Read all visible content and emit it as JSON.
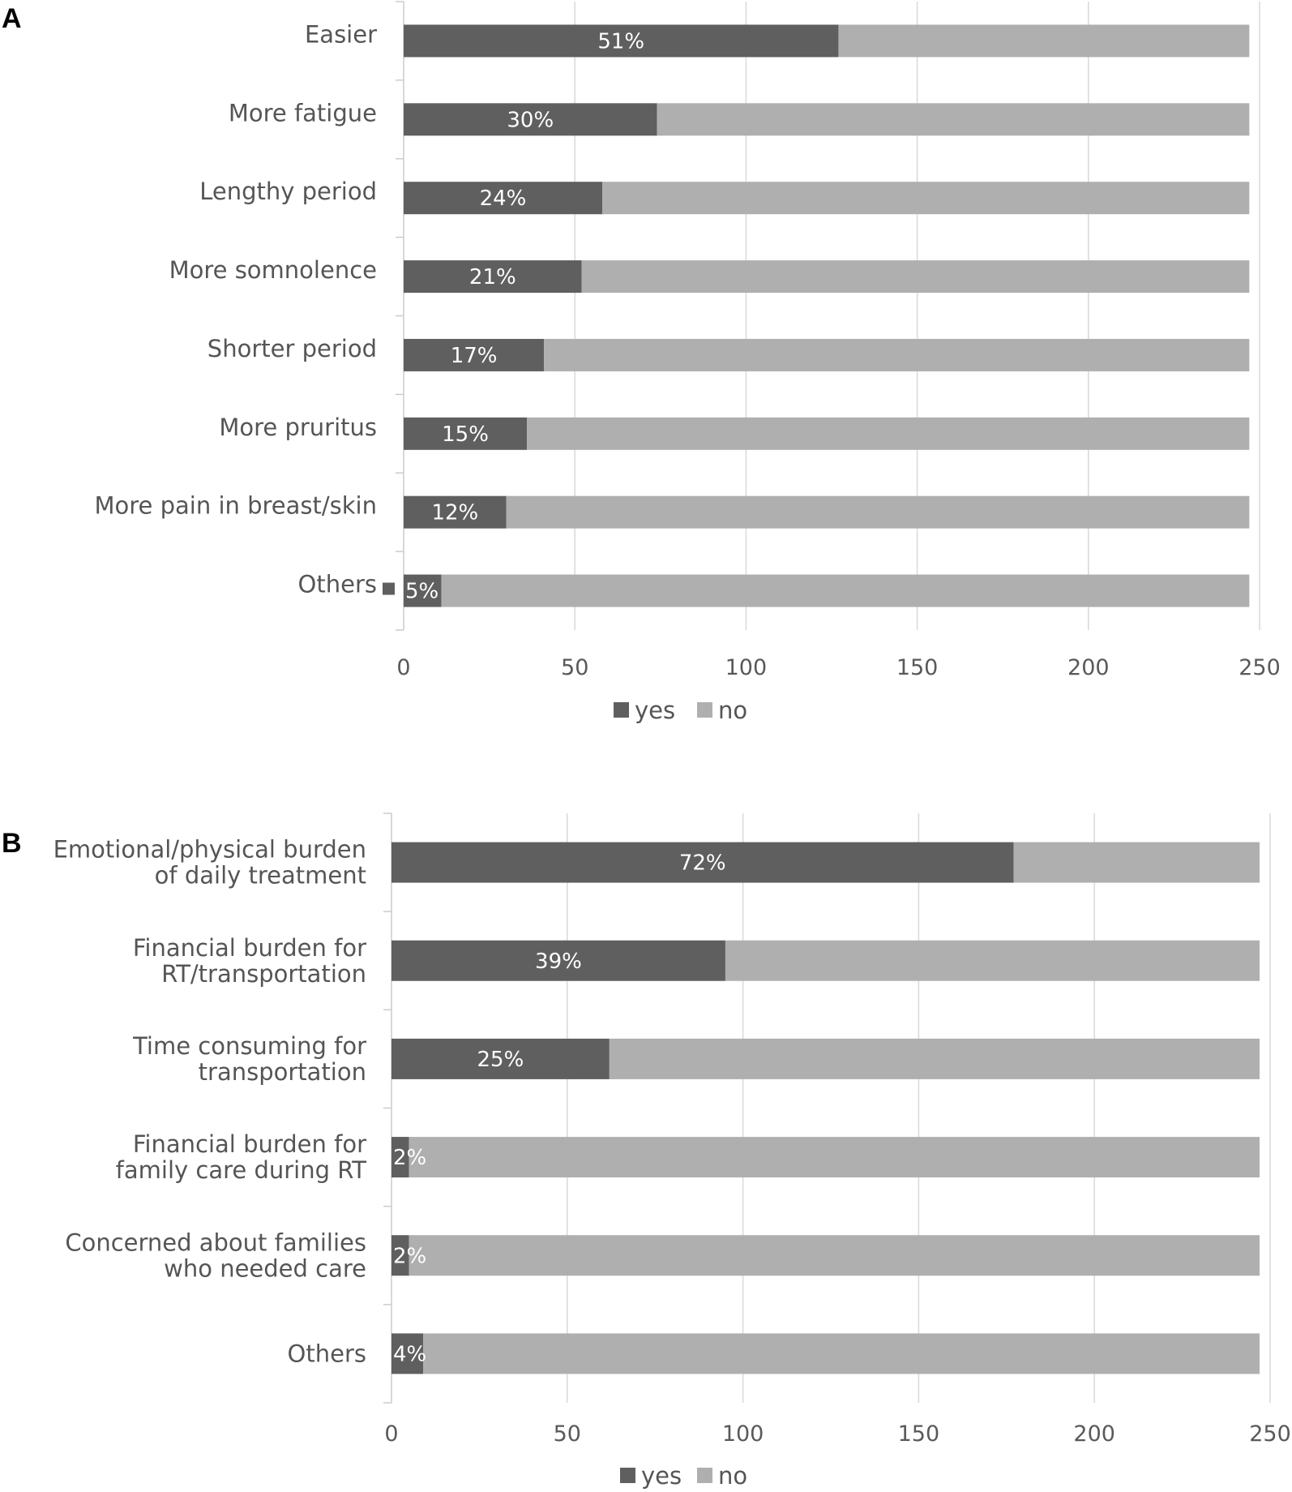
{
  "chart_data": [
    {
      "panel": "A",
      "type": "bar",
      "orientation": "horizontal",
      "stacked": true,
      "categories": [
        "Easier",
        "More fatigue",
        "Lengthy period",
        "More somnolence",
        "Shorter period",
        "More pruritus",
        "More pain in breast/skin",
        "Others"
      ],
      "series": [
        {
          "name": "yes",
          "values": [
            127,
            74,
            58,
            52,
            41,
            36,
            30,
            11
          ],
          "color": "#5f5f5f"
        },
        {
          "name": "no",
          "values": [
            120,
            173,
            189,
            195,
            206,
            211,
            217,
            236
          ],
          "color": "#afafaf"
        }
      ],
      "data_labels": [
        "51%",
        "30%",
        "24%",
        "21%",
        "17%",
        "15%",
        "12%",
        "5%"
      ],
      "xlim": [
        0,
        250
      ],
      "xticks": [
        "0",
        "50",
        "100",
        "150",
        "200",
        "250"
      ],
      "grid": true,
      "legend": [
        "yes",
        "no"
      ],
      "legend_position": "bottom"
    },
    {
      "panel": "B",
      "type": "bar",
      "orientation": "horizontal",
      "stacked": true,
      "categories": [
        [
          "Emotional/physical burden",
          "of daily treatment"
        ],
        [
          "Financial burden for",
          "RT/transportation"
        ],
        [
          "Time consuming for",
          "transportation"
        ],
        [
          "Financial burden for",
          "family care during RT"
        ],
        [
          "Concerned about families",
          "who needed care"
        ],
        [
          "Others"
        ]
      ],
      "series": [
        {
          "name": "yes",
          "values": [
            177,
            95,
            62,
            5,
            5,
            9
          ],
          "color": "#5f5f5f"
        },
        {
          "name": "no",
          "values": [
            70,
            152,
            185,
            242,
            242,
            238
          ],
          "color": "#afafaf"
        }
      ],
      "data_labels": [
        "72%",
        "39%",
        "25%",
        "2%",
        "2%",
        "4%"
      ],
      "xlim": [
        0,
        250
      ],
      "xticks": [
        "0",
        "50",
        "100",
        "150",
        "200",
        "250"
      ],
      "grid": true,
      "legend": [
        "yes",
        "no"
      ],
      "legend_position": "bottom"
    }
  ]
}
